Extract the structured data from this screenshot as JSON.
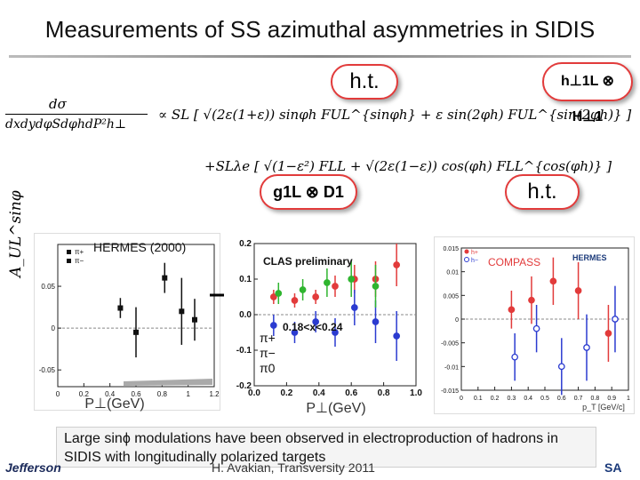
{
  "slide": {
    "title": "Measurements of SS azimuthal asymmetries in SIDIS",
    "formula": {
      "lhs_numerator": "dσ",
      "lhs_denominator": "dxdydφSdφhdP²h⊥",
      "line1": "∝ SL [ √(2ε(1+ε)) sinφh FUL^{sinφh} + ε sin(2φh) FUL^{sin(2φh)} ]",
      "line2": "+SLλe [ √(1−ε²) FLL + √(2ε(1−ε)) cos(φh) FLL^{cos(φh)} ]"
    },
    "bubbles": {
      "ht_top": "h.t.",
      "h_product": "h⊥1L ⊗ H⊥1",
      "g_product": "g1L ⊗ D1",
      "ht_bottom": "h.t."
    },
    "yaxis_label": "A_UL^sinφ",
    "caption": "Large sinϕ modulations have been observed in electroproduction of hadrons in SIDIS with longitudinally polarized  targets",
    "footer_left": "Jefferson",
    "footer_center": "H. Avakian, Transversity 2011",
    "footer_right": "SA",
    "colors": {
      "accent": "#e23b3b",
      "pi_plus": "#e23b3b",
      "pi_minus": "#2b3bd0",
      "pi_zero": "#2fb52f"
    }
  },
  "chart_data": [
    {
      "type": "scatter",
      "title": "HERMES (2000)",
      "xlabel": "P⊥(GeV)",
      "ylabel": "A^sinφ_UL",
      "xlim": [
        0,
        1.2
      ],
      "ylim": [
        -0.07,
        0.1
      ],
      "xticks": [
        "0",
        "0.2",
        "0.4",
        "0.6",
        "0.8",
        "1",
        "1.2"
      ],
      "yticks": [
        "0.05",
        "0",
        "-0.05"
      ],
      "series": [
        {
          "name": "π+",
          "x": [
            0.48,
            0.82,
            1.05
          ],
          "y": [
            0.024,
            0.06,
            0.01
          ],
          "err": [
            0.012,
            0.018,
            0.025
          ]
        },
        {
          "name": "π−",
          "x": [
            0.6,
            0.95
          ],
          "y": [
            -0.005,
            0.02
          ],
          "err": [
            0.03,
            0.04
          ]
        }
      ]
    },
    {
      "type": "scatter",
      "title": "CLAS preliminary",
      "annotation": "0.18<x<0.24",
      "xlabel": "P⊥(GeV)",
      "xlim": [
        0,
        1.0
      ],
      "ylim": [
        -0.2,
        0.2
      ],
      "xticks": [
        "0.0",
        "0.2",
        "0.4",
        "0.6",
        "0.8",
        "1.0"
      ],
      "yticks": [
        "0.2",
        "0.1",
        "0.0",
        "-0.1",
        "-0.2"
      ],
      "series": [
        {
          "name": "π+",
          "x": [
            0.12,
            0.25,
            0.38,
            0.5,
            0.62,
            0.75,
            0.88
          ],
          "y": [
            0.05,
            0.04,
            0.05,
            0.08,
            0.1,
            0.1,
            0.14
          ],
          "err": [
            0.02,
            0.02,
            0.02,
            0.03,
            0.04,
            0.05,
            0.06
          ]
        },
        {
          "name": "π−",
          "x": [
            0.12,
            0.25,
            0.38,
            0.5,
            0.62,
            0.75,
            0.88
          ],
          "y": [
            -0.03,
            -0.05,
            -0.02,
            -0.05,
            0.02,
            -0.02,
            -0.06
          ],
          "err": [
            0.03,
            0.03,
            0.03,
            0.04,
            0.05,
            0.06,
            0.07
          ]
        },
        {
          "name": "π0",
          "x": [
            0.15,
            0.3,
            0.45,
            0.6,
            0.75
          ],
          "y": [
            0.06,
            0.07,
            0.09,
            0.1,
            0.08
          ],
          "err": [
            0.03,
            0.03,
            0.04,
            0.05,
            0.06
          ]
        }
      ]
    },
    {
      "type": "scatter",
      "title": "COMPASS",
      "legend": "HERMES",
      "xlabel": "p_T [GeV/c]",
      "xlim": [
        0,
        1.0
      ],
      "ylim": [
        -0.015,
        0.015
      ],
      "xticks": [
        "0",
        "0.1",
        "0.2",
        "0.3",
        "0.4",
        "0.5",
        "0.6",
        "0.7",
        "0.8",
        "0.9",
        "1"
      ],
      "yticks": [
        "0.015",
        "0.01",
        "0.005",
        "0",
        "-0.005",
        "-0.01",
        "-0.015"
      ],
      "series": [
        {
          "name": "h+",
          "x": [
            0.3,
            0.42,
            0.55,
            0.7,
            0.88
          ],
          "y": [
            0.002,
            0.004,
            0.008,
            0.006,
            -0.003
          ],
          "err": [
            0.004,
            0.005,
            0.005,
            0.006,
            0.006
          ]
        },
        {
          "name": "h−",
          "x": [
            0.32,
            0.45,
            0.6,
            0.75,
            0.92
          ],
          "y": [
            -0.008,
            -0.002,
            -0.01,
            -0.006,
            0.0
          ],
          "err": [
            0.005,
            0.005,
            0.006,
            0.007,
            0.007
          ]
        }
      ]
    }
  ]
}
